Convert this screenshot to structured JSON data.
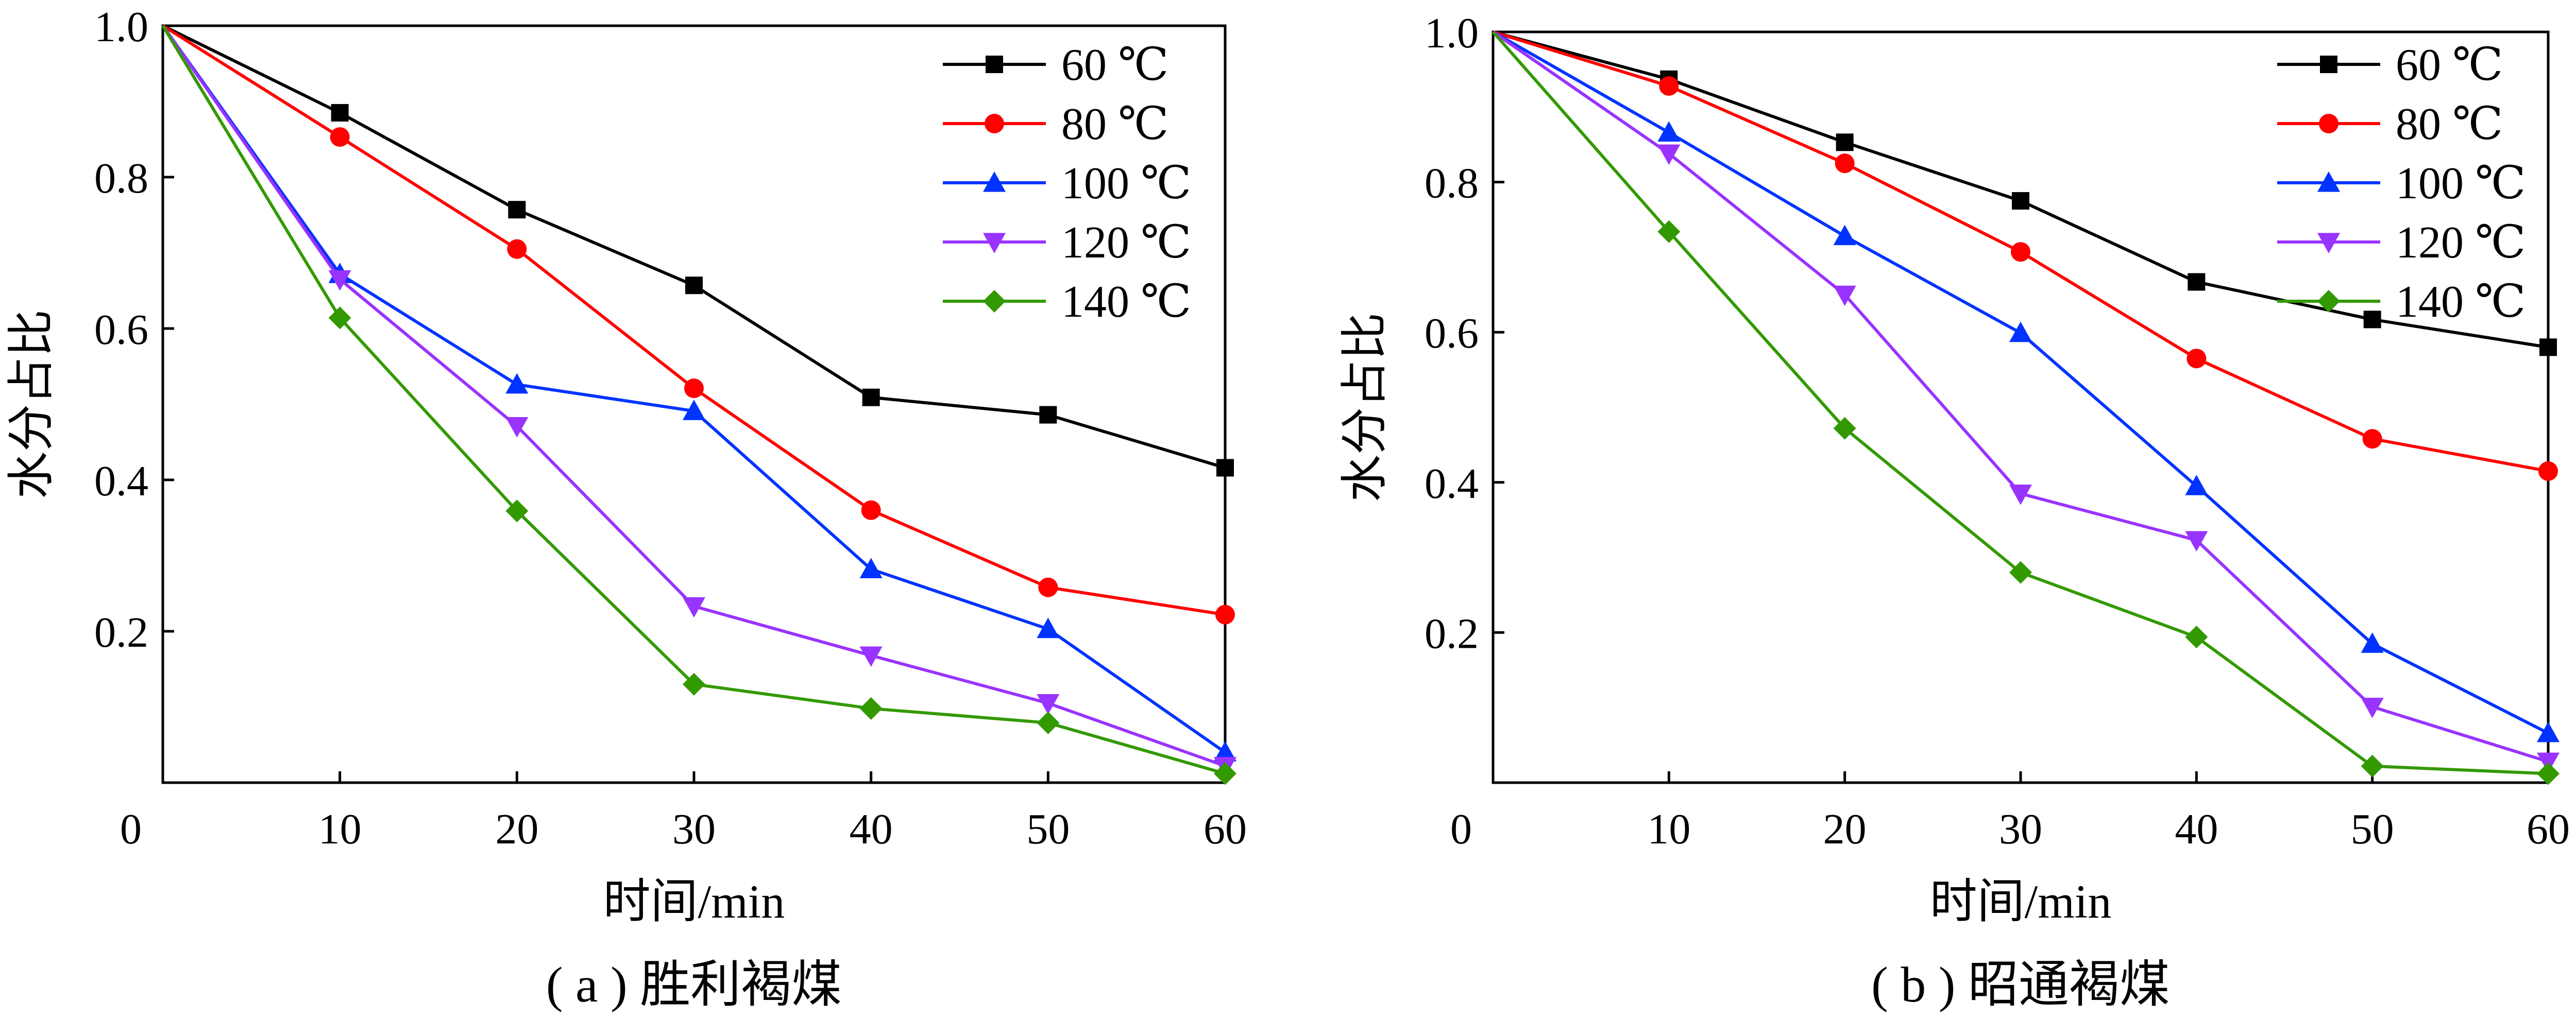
{
  "chart_data": [
    {
      "type": "line",
      "caption": "( a ) 胜利褐煤",
      "xlabel": "时间/min",
      "ylabel": "水分占比",
      "xlim": [
        0,
        60
      ],
      "ylim": [
        0,
        1.0
      ],
      "x": [
        0,
        10,
        20,
        30,
        40,
        50,
        60
      ],
      "xticks": [
        "0",
        "10",
        "20",
        "30",
        "40",
        "50",
        "60"
      ],
      "yticks": [
        "0.2",
        "0.4",
        "0.6",
        "0.8",
        "1.0"
      ],
      "legend_position": "top-right",
      "grid": false,
      "series": [
        {
          "name": "60 ℃",
          "color": "#000000",
          "marker": "square",
          "values": [
            1.0,
            0.885,
            0.757,
            0.657,
            0.509,
            0.486,
            0.416
          ]
        },
        {
          "name": "80 ℃",
          "color": "#ff0000",
          "marker": "circle",
          "values": [
            1.0,
            0.853,
            0.705,
            0.521,
            0.36,
            0.258,
            0.222
          ]
        },
        {
          "name": "100 ℃",
          "color": "#0033ff",
          "marker": "triangle-up",
          "values": [
            1.0,
            0.672,
            0.526,
            0.491,
            0.282,
            0.203,
            0.04
          ]
        },
        {
          "name": "120 ℃",
          "color": "#9933ff",
          "marker": "triangle-down",
          "values": [
            1.0,
            0.665,
            0.471,
            0.233,
            0.168,
            0.105,
            0.022
          ]
        },
        {
          "name": "140 ℃",
          "color": "#339900",
          "marker": "diamond",
          "values": [
            1.0,
            0.614,
            0.359,
            0.13,
            0.098,
            0.079,
            0.012
          ]
        }
      ]
    },
    {
      "type": "line",
      "caption": "( b ) 昭通褐煤",
      "xlabel": "时间/min",
      "ylabel": "水分占比",
      "xlim": [
        0,
        60
      ],
      "ylim": [
        0,
        1.0
      ],
      "x": [
        0,
        10,
        20,
        30,
        40,
        50,
        60
      ],
      "xticks": [
        "0",
        "10",
        "20",
        "30",
        "40",
        "50",
        "60"
      ],
      "yticks": [
        "0.2",
        "0.4",
        "0.6",
        "0.8",
        "1.0"
      ],
      "legend_position": "top-right",
      "grid": false,
      "series": [
        {
          "name": "60 ℃",
          "color": "#000000",
          "marker": "square",
          "values": [
            1.0,
            0.937,
            0.853,
            0.775,
            0.667,
            0.617,
            0.58
          ]
        },
        {
          "name": "80 ℃",
          "color": "#ff0000",
          "marker": "circle",
          "values": [
            1.0,
            0.928,
            0.825,
            0.707,
            0.565,
            0.458,
            0.415
          ]
        },
        {
          "name": "100 ℃",
          "color": "#0033ff",
          "marker": "triangle-up",
          "values": [
            1.0,
            0.866,
            0.728,
            0.599,
            0.395,
            0.185,
            0.066
          ]
        },
        {
          "name": "120 ℃",
          "color": "#9933ff",
          "marker": "triangle-down",
          "values": [
            1.0,
            0.838,
            0.65,
            0.385,
            0.323,
            0.101,
            0.028
          ]
        },
        {
          "name": "140 ℃",
          "color": "#339900",
          "marker": "diamond",
          "values": [
            1.0,
            0.734,
            0.472,
            0.28,
            0.194,
            0.022,
            0.012
          ]
        }
      ]
    }
  ]
}
